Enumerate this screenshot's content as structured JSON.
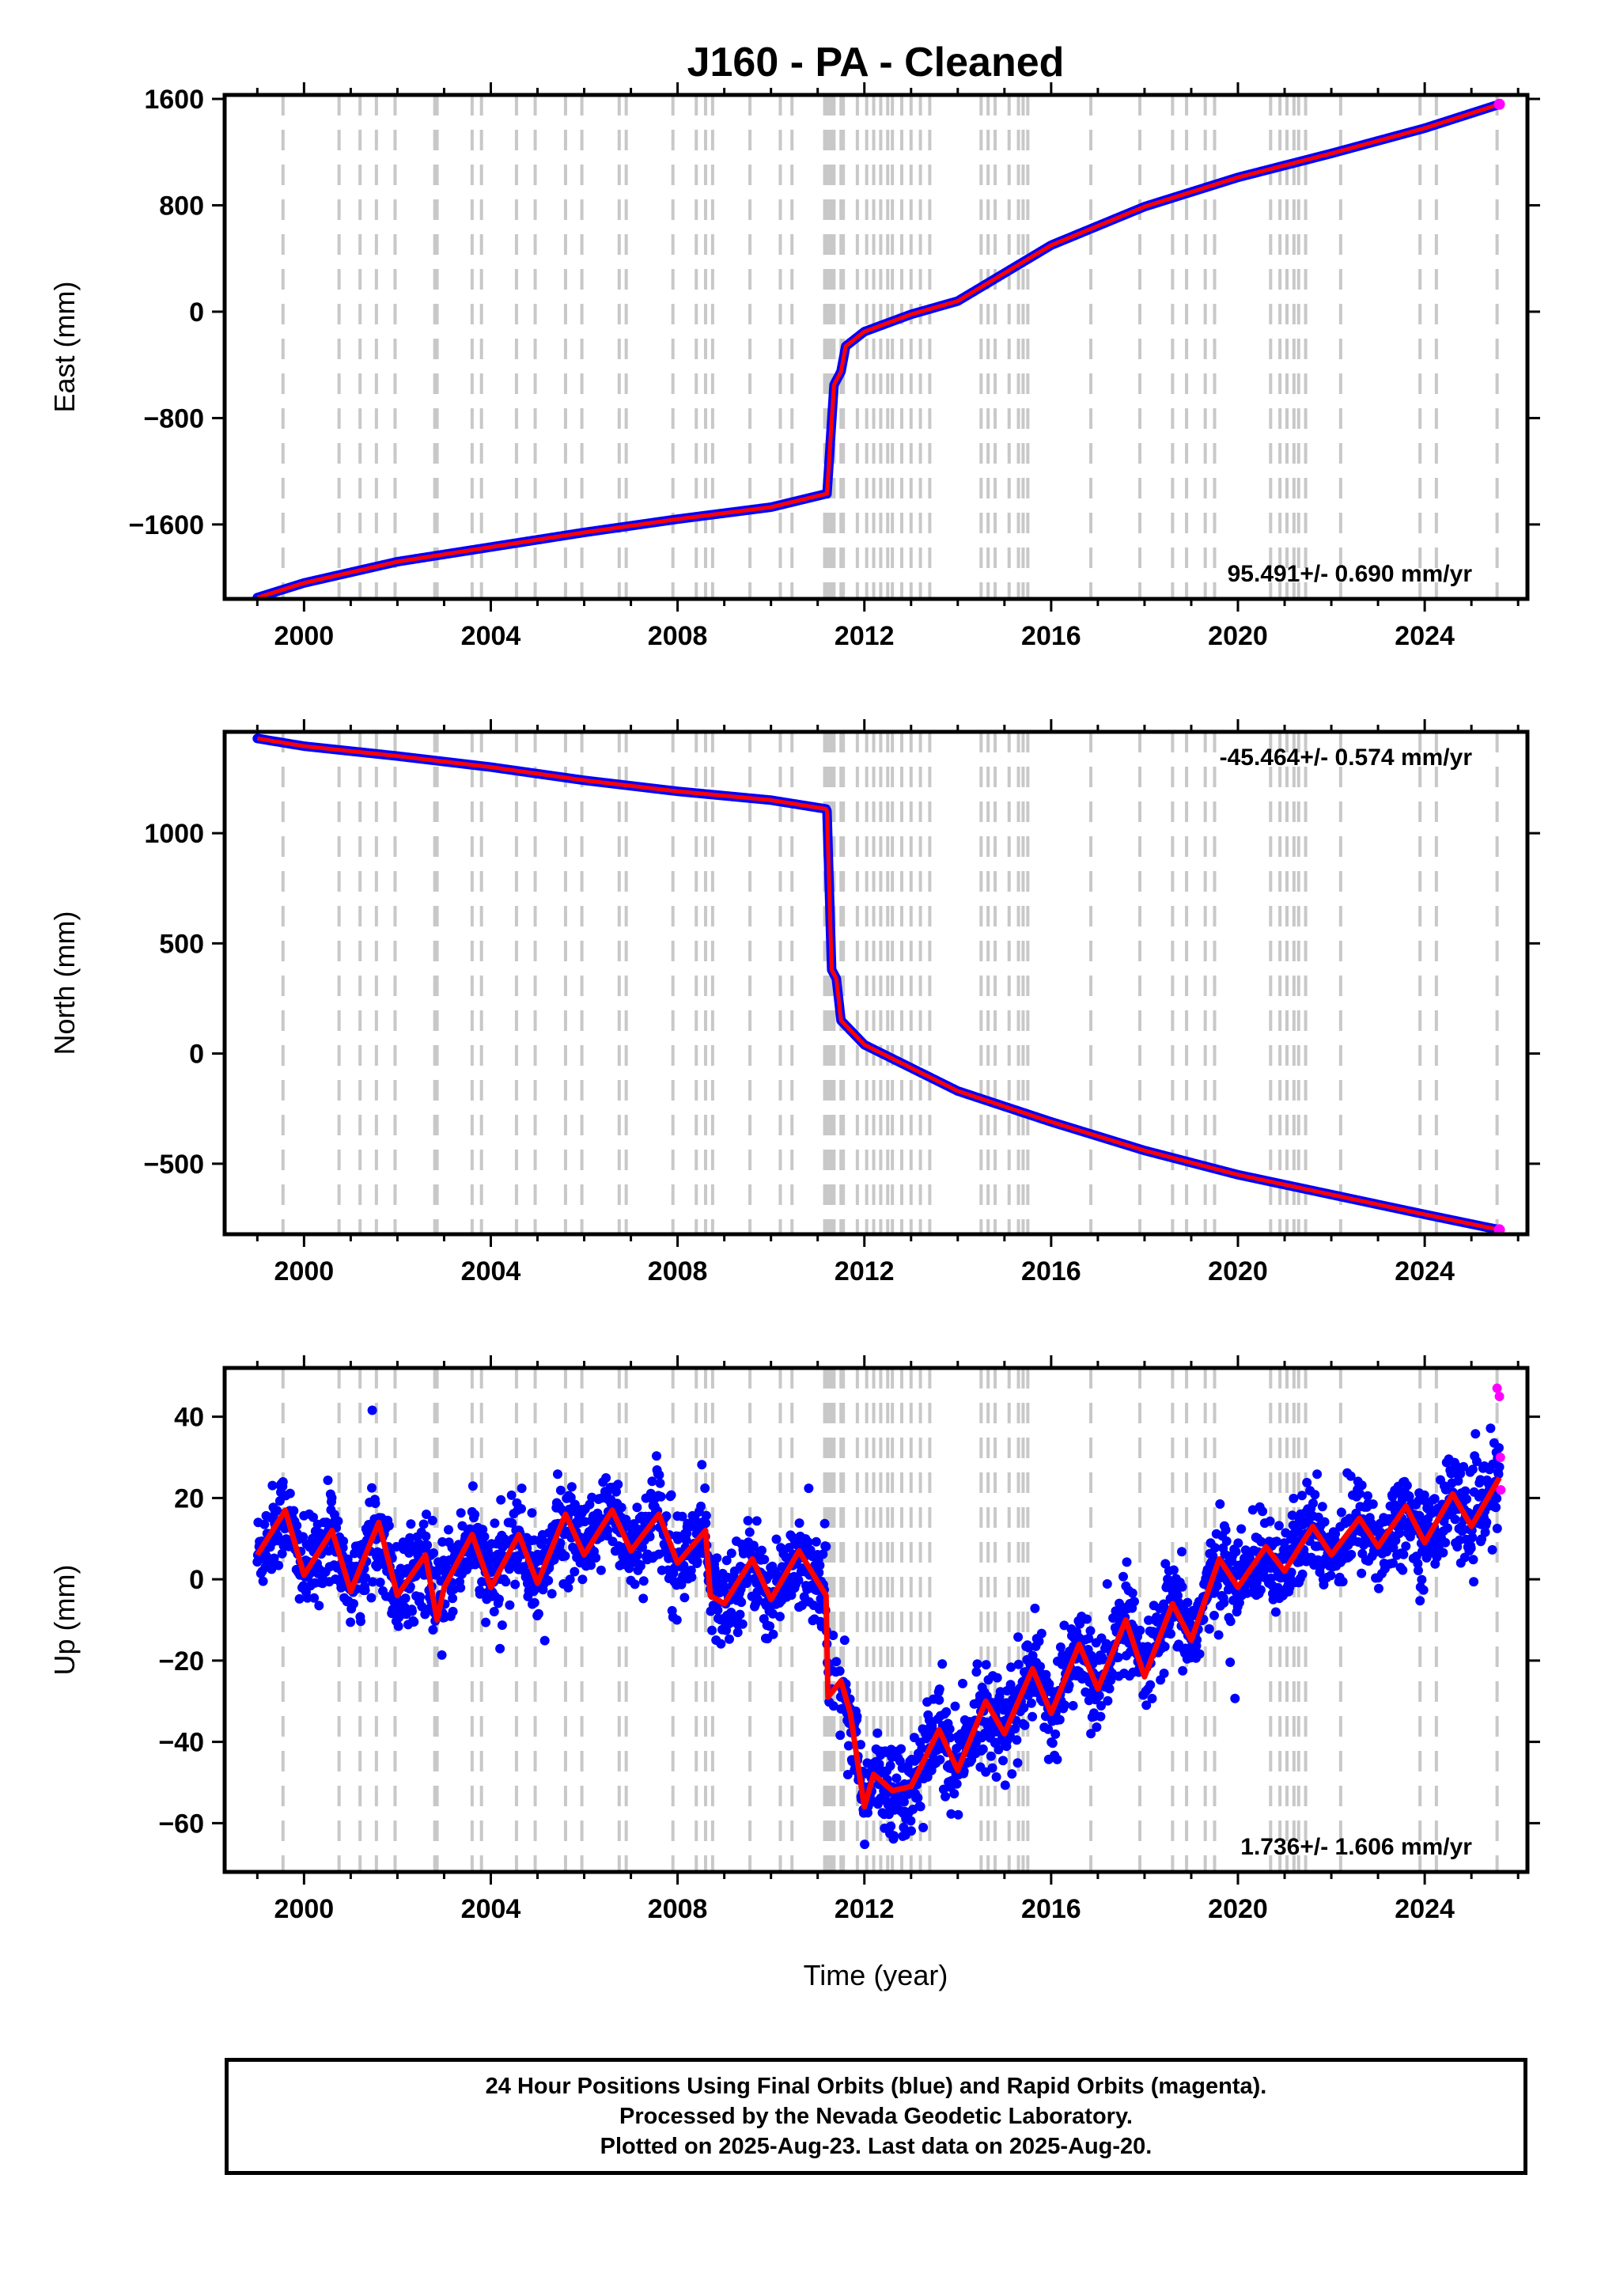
{
  "chart_data": {
    "title": "J160  - PA - Cleaned",
    "xlabel": "Time (year)",
    "type": "scatter",
    "colors": {
      "final": "#0000ff",
      "rapid": "#ff00ff",
      "model": "#ff0000",
      "event": "#c8c8c8"
    },
    "xlim": [
      1998.3,
      2026.2
    ],
    "x_ticks": [
      2000,
      2004,
      2008,
      2012,
      2016,
      2020,
      2024
    ],
    "event_lines": [
      1999.55,
      2000.75,
      2001.2,
      2001.55,
      2001.95,
      2002.8,
      2002.85,
      2003.6,
      2003.8,
      2004.55,
      2004.95,
      2005.6,
      2005.95,
      2006.75,
      2006.9,
      2007.9,
      2008.4,
      2008.6,
      2008.75,
      2009.55,
      2010.2,
      2010.45,
      2011.15,
      2011.2,
      2011.25,
      2011.3,
      2011.35,
      2011.5,
      2011.55,
      2011.85,
      2012.05,
      2012.2,
      2012.35,
      2012.5,
      2012.6,
      2012.8,
      2013.0,
      2013.2,
      2013.4,
      2014.5,
      2014.65,
      2014.8,
      2015.1,
      2015.3,
      2015.4,
      2015.5,
      2016.85,
      2017.9,
      2018.6,
      2018.9,
      2019.3,
      2019.5,
      2020.7,
      2020.9,
      2021.05,
      2021.2,
      2021.3,
      2021.45,
      2022.2,
      2023.9,
      2024.25,
      2025.55
    ],
    "panels": [
      {
        "ylabel": "East (mm)",
        "ylim": [
          -2160,
          1630
        ],
        "y_ticks": [
          1600,
          800,
          0,
          -800,
          -1600
        ],
        "y_tick_labels": [
          "1600",
          "800",
          "0",
          "−800",
          "−1600"
        ],
        "rate": "95.491+/- 0.690 mm/yr",
        "rate_position": "bottom-right",
        "x_tick_labels": [
          "2000",
          "2004",
          "2008",
          "2012",
          "2016",
          "2020",
          "2024"
        ],
        "series": [
          {
            "x": [
              1999.0,
              2000.0,
              2002.0,
              2004.0,
              2006.0,
              2008.0,
              2010.0,
              2011.18,
              2011.2,
              2011.35,
              2011.5,
              2011.6,
              2012.0,
              2013.0,
              2014.0,
              2016.0,
              2018.0,
              2020.0,
              2022.0,
              2024.0,
              2025.6
            ],
            "y": [
              -2150,
              -2040,
              -1880,
              -1770,
              -1660,
              -1560,
              -1470,
              -1370,
              -1370,
              -550,
              -450,
              -260,
              -150,
              -20,
              80,
              500,
              790,
              1010,
              1190,
              1380,
              1560
            ]
          }
        ]
      },
      {
        "ylabel": "North (mm)",
        "ylim": [
          -820,
          1460
        ],
        "y_ticks": [
          1000,
          500,
          0,
          -500
        ],
        "y_tick_labels": [
          "1000",
          "500",
          "0",
          "−500"
        ],
        "rate": "-45.464+/- 0.574 mm/yr",
        "rate_position": "top-right",
        "x_tick_labels": [
          "2000",
          "2004",
          "2008",
          "2012",
          "2016",
          "2020",
          "2024"
        ],
        "series": [
          {
            "x": [
              1999.0,
              2000.0,
              2002.0,
              2004.0,
              2006.0,
              2008.0,
              2010.0,
              2011.18,
              2011.2,
              2011.3,
              2011.4,
              2011.5,
              2012.0,
              2014.0,
              2016.0,
              2018.0,
              2020.0,
              2022.0,
              2024.0,
              2025.6
            ],
            "y": [
              1430,
              1395,
              1350,
              1300,
              1240,
              1190,
              1150,
              1110,
              1100,
              380,
              340,
              150,
              40,
              -170,
              -310,
              -440,
              -550,
              -640,
              -730,
              -800
            ]
          }
        ]
      },
      {
        "ylabel": "Up (mm)",
        "ylim": [
          -72,
          52
        ],
        "y_ticks": [
          40,
          20,
          0,
          -20,
          -40,
          -60
        ],
        "y_tick_labels": [
          "40",
          "20",
          "0",
          "−20",
          "−40",
          "−60"
        ],
        "rate": "1.736+/- 1.606 mm/yr",
        "rate_position": "bottom-right",
        "x_tick_labels": [
          "2000",
          "2004",
          "2008",
          "2012",
          "2016",
          "2020",
          "2024"
        ],
        "model": {
          "x": [
            1999.0,
            1999.6,
            2000.0,
            2000.6,
            2001.0,
            2001.6,
            2002.0,
            2002.6,
            2002.85,
            2003.0,
            2003.6,
            2004.0,
            2004.6,
            2005.0,
            2005.6,
            2006.0,
            2006.6,
            2007.0,
            2007.6,
            2008.0,
            2008.6,
            2008.7,
            2009.0,
            2009.6,
            2010.0,
            2010.6,
            2011.18,
            2011.22,
            2011.5,
            2011.7,
            2012.0,
            2012.2,
            2012.6,
            2013.0,
            2013.6,
            2014.0,
            2014.6,
            2015.0,
            2015.6,
            2016.0,
            2016.6,
            2017.0,
            2017.6,
            2018.0,
            2018.6,
            2019.0,
            2019.6,
            2020.0,
            2020.6,
            2021.0,
            2021.6,
            2022.0,
            2022.6,
            2023.0,
            2023.6,
            2024.0,
            2024.6,
            2025.0,
            2025.6
          ],
          "y": [
            6,
            17,
            1,
            12,
            -3,
            14,
            -4,
            6,
            -10,
            -2,
            11,
            -2,
            11,
            -1,
            16,
            6,
            17,
            7,
            16,
            4,
            12,
            -4,
            -6,
            5,
            -5,
            7,
            -4,
            -29,
            -25,
            -33,
            -56,
            -48,
            -52,
            -51,
            -37,
            -47,
            -30,
            -38,
            -22,
            -33,
            -16,
            -27,
            -10,
            -24,
            -6,
            -15,
            5,
            -2,
            8,
            2,
            13,
            6,
            15,
            8,
            18,
            9,
            21,
            13,
            25
          ]
        },
        "noise_std": 5.5,
        "rapid_points": {
          "x": [
            2025.55,
            2025.6,
            2025.62,
            2025.63
          ],
          "y": [
            47,
            45,
            30,
            22
          ]
        }
      }
    ]
  },
  "footer": {
    "line1": "24 Hour Positions Using Final Orbits (blue) and Rapid Orbits (magenta).",
    "line2": "Processed by the Nevada Geodetic Laboratory.",
    "line3": "Plotted on 2025-Aug-23. Last data on 2025-Aug-20."
  }
}
